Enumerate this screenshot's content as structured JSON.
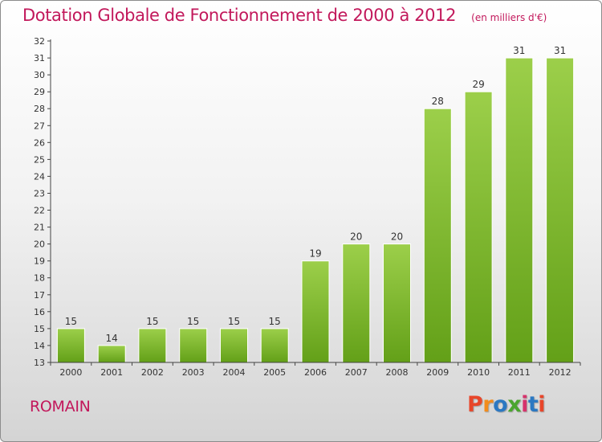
{
  "chart_data": {
    "type": "bar",
    "title": "Dotation Globale de Fonctionnement de 2000 à 2012",
    "subtitle": "(en milliers d'€)",
    "categories": [
      "2000",
      "2001",
      "2002",
      "2003",
      "2004",
      "2005",
      "2006",
      "2007",
      "2008",
      "2009",
      "2010",
      "2011",
      "2012"
    ],
    "values": [
      15,
      14,
      15,
      15,
      15,
      15,
      19,
      20,
      20,
      28,
      29,
      31,
      31
    ],
    "ylim": [
      13,
      32
    ],
    "yticks": [
      13,
      14,
      15,
      16,
      17,
      18,
      19,
      20,
      21,
      22,
      23,
      24,
      25,
      26,
      27,
      28,
      29,
      30,
      31,
      32
    ],
    "xlabel": "",
    "ylabel": "",
    "grid": false,
    "bar_color_top": "#9ccf4a",
    "bar_color_bottom": "#63a018"
  },
  "footer": {
    "commune": "ROMAIN",
    "brand": "Proxiti"
  },
  "colors": {
    "accent": "#c2185b",
    "brand_letters": [
      "#e8462a",
      "#f28c1c",
      "#2b78c2",
      "#4aa52e",
      "#d6336c",
      "#2b78c2",
      "#e8462a"
    ]
  }
}
